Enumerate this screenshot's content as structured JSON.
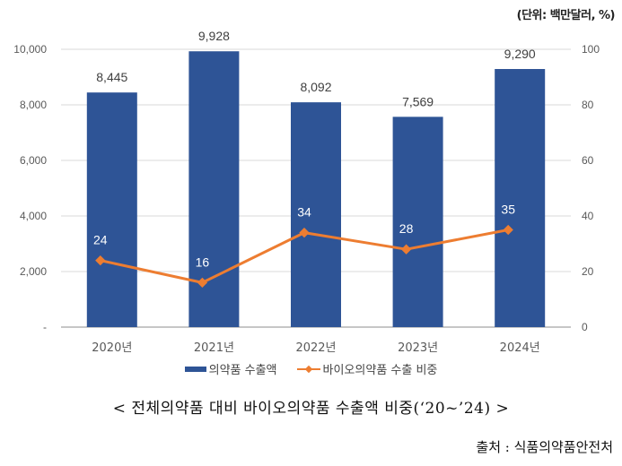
{
  "unit_label": "(단위: 백만달러, %)",
  "chart_data": {
    "type": "bar+line",
    "categories": [
      "2020년",
      "2021년",
      "2022년",
      "2023년",
      "2024년"
    ],
    "series": [
      {
        "name": "의약품 수출액",
        "type": "bar",
        "axis": "left",
        "values": [
          8445,
          9928,
          8092,
          7569,
          9290
        ],
        "labels": [
          "8,445",
          "9,928",
          "8,092",
          "7,569",
          "9,290"
        ],
        "color": "#2E5496"
      },
      {
        "name": "바이오의약품 수출 비중",
        "type": "line",
        "axis": "right",
        "values": [
          24,
          16,
          34,
          28,
          35
        ],
        "labels": [
          "24",
          "16",
          "34",
          "28",
          "35"
        ],
        "color": "#ED7D31"
      }
    ],
    "y_left": {
      "ylim": [
        0,
        10000
      ],
      "ticks": [
        0,
        2000,
        4000,
        6000,
        8000,
        10000
      ],
      "tick_labels": [
        "-",
        "2,000",
        "4,000",
        "6,000",
        "8,000",
        "10,000"
      ]
    },
    "y_right": {
      "ylim": [
        0,
        100
      ],
      "ticks": [
        0,
        20,
        40,
        60,
        80,
        100
      ],
      "tick_labels": [
        "0",
        "20",
        "40",
        "60",
        "80",
        "100"
      ]
    },
    "grid": true,
    "legend": "bottom",
    "title": "< 전체의약품 대비 바이오의약품 수출액 비중(‘20~’24) >"
  },
  "caption": "< 전체의약품 대비 바이오의약품 수출액 비중(‘20~’24) >",
  "source": "출처 : 식품의약품안전처"
}
